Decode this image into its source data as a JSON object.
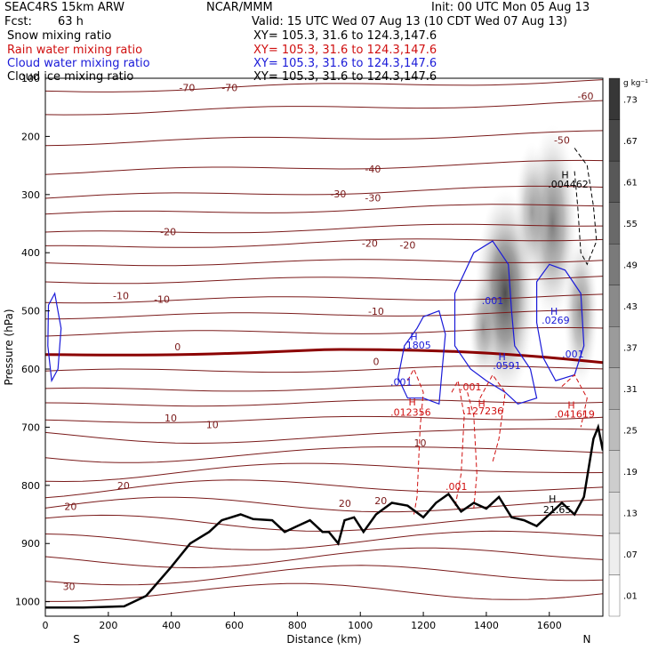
{
  "header": {
    "model": "SEAC4RS 15km ARW",
    "org": "NCAR/MMM",
    "init": "Init: 00 UTC Mon 05 Aug 13",
    "fcst_label": "Fcst:",
    "fcst_value": "63 h",
    "valid": "Valid: 15 UTC Wed 07 Aug 13 (10 CDT Wed 07 Aug 13)",
    "fields": [
      {
        "name": "Snow mixing ratio",
        "xy": "XY= 105.3, 31.6 to 124.3,147.6",
        "color": "#000000"
      },
      {
        "name": "Rain water mixing ratio",
        "xy": "XY= 105.3, 31.6 to 124.3,147.6",
        "color": "#d01010"
      },
      {
        "name": "Cloud water mixing ratio",
        "xy": "XY= 105.3, 31.6 to 124.3,147.6",
        "color": "#1a1ad8"
      },
      {
        "name": "Cloud ice mixing ratio",
        "xy": "XY= 105.3, 31.6 to 124.3,147.6",
        "color": "#000000"
      }
    ]
  },
  "chart_data": {
    "type": "cross-section",
    "xlabel": "Distance (km)",
    "ylabel": "Pressure (hPa)",
    "xlim": [
      0,
      1770
    ],
    "ylim": [
      1025,
      100
    ],
    "x_ticks": [
      0,
      200,
      400,
      600,
      800,
      1000,
      1200,
      1400,
      1600
    ],
    "y_ticks": [
      100,
      200,
      300,
      400,
      500,
      600,
      700,
      800,
      900,
      1000
    ],
    "x_end_labels": {
      "left": "S",
      "right": "N"
    },
    "colorbar": {
      "unit": "g kg⁻¹",
      "labels": [
        ".01",
        ".07",
        ".13",
        ".19",
        ".25",
        ".31",
        ".37",
        ".43",
        ".49",
        ".55",
        ".61",
        ".67",
        ".73"
      ]
    },
    "temperature_labels": [
      {
        "x": 450,
        "p": 122,
        "text": "-70"
      },
      {
        "x": 585,
        "p": 122,
        "text": "-70"
      },
      {
        "x": 1715,
        "p": 137,
        "text": "-60"
      },
      {
        "x": 1640,
        "p": 212,
        "text": "-50"
      },
      {
        "x": 1040,
        "p": 262,
        "text": "-40"
      },
      {
        "x": 930,
        "p": 305,
        "text": "-30"
      },
      {
        "x": 1040,
        "p": 312,
        "text": "-30"
      },
      {
        "x": 390,
        "p": 370,
        "text": "-20"
      },
      {
        "x": 1030,
        "p": 390,
        "text": "-20"
      },
      {
        "x": 1150,
        "p": 393,
        "text": "-20"
      },
      {
        "x": 240,
        "p": 480,
        "text": "-10"
      },
      {
        "x": 370,
        "p": 486,
        "text": "-10"
      },
      {
        "x": 1050,
        "p": 507,
        "text": "-10"
      },
      {
        "x": 420,
        "p": 568,
        "text": "0"
      },
      {
        "x": 1050,
        "p": 593,
        "text": "0"
      },
      {
        "x": 398,
        "p": 690,
        "text": "10"
      },
      {
        "x": 530,
        "p": 702,
        "text": "10"
      },
      {
        "x": 1190,
        "p": 733,
        "text": "10"
      },
      {
        "x": 248,
        "p": 806,
        "text": "20"
      },
      {
        "x": 80,
        "p": 842,
        "text": "20"
      },
      {
        "x": 951,
        "p": 837,
        "text": "20"
      },
      {
        "x": 1065,
        "p": 832,
        "text": "20"
      },
      {
        "x": 75,
        "p": 980,
        "text": "30"
      }
    ],
    "cloud_water_labels": [
      {
        "x": 1170,
        "p": 550,
        "text": "H"
      },
      {
        "x": 1180,
        "p": 565,
        "text": ".1805"
      },
      {
        "x": 1130,
        "p": 628,
        "text": ".001"
      },
      {
        "x": 1420,
        "p": 488,
        "text": ".001"
      },
      {
        "x": 1450,
        "p": 585,
        "text": "H"
      },
      {
        "x": 1465,
        "p": 600,
        "text": ".0591"
      },
      {
        "x": 1615,
        "p": 507,
        "text": "H"
      },
      {
        "x": 1620,
        "p": 522,
        "text": ".0269"
      },
      {
        "x": 1675,
        "p": 580,
        "text": ".001"
      }
    ],
    "rain_labels": [
      {
        "x": 1165,
        "p": 663,
        "text": "H"
      },
      {
        "x": 1160,
        "p": 680,
        "text": ".012356"
      },
      {
        "x": 1350,
        "p": 637,
        "text": ".001"
      },
      {
        "x": 1385,
        "p": 665,
        "text": "H"
      },
      {
        "x": 1390,
        "p": 678,
        "text": ".127236"
      },
      {
        "x": 1670,
        "p": 668,
        "text": "H"
      },
      {
        "x": 1680,
        "p": 683,
        "text": ".041619"
      },
      {
        "x": 1305,
        "p": 808,
        "text": ".001"
      }
    ],
    "ice_labels": [
      {
        "x": 1650,
        "p": 272,
        "text": "H"
      },
      {
        "x": 1660,
        "p": 288,
        "text": ".004462"
      }
    ],
    "terrain_labels": [
      {
        "x": 1610,
        "p": 829,
        "text": "H"
      },
      {
        "x": 1625,
        "p": 848,
        "text": "21.65"
      }
    ]
  }
}
